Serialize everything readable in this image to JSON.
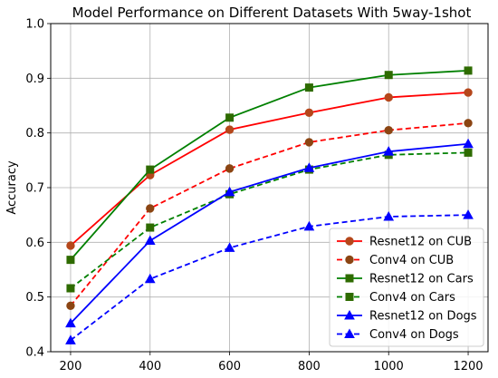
{
  "chart_data": {
    "type": "line",
    "title": "Model Performance on Different Datasets With 5way-1shot",
    "xlabel": "",
    "ylabel": "Accuracy",
    "x": [
      200,
      400,
      600,
      800,
      1000,
      1200
    ],
    "xlim": [
      150,
      1250
    ],
    "ylim": [
      0.4,
      1.0
    ],
    "xticks": [
      "200",
      "400",
      "600",
      "800",
      "1000",
      "1200"
    ],
    "yticks": [
      "0.4",
      "0.5",
      "0.6",
      "0.7",
      "0.8",
      "0.9",
      "1.0"
    ],
    "grid": true,
    "legend_position": "lower-right",
    "series": [
      {
        "name": "Resnet12 on CUB",
        "color": "#ff0000",
        "marker": "circle",
        "marker_color": "#b5471b",
        "linestyle": "solid",
        "values": [
          0.594,
          0.723,
          0.806,
          0.837,
          0.865,
          0.874
        ]
      },
      {
        "name": "Conv4 on CUB",
        "color": "#ff0000",
        "marker": "circle",
        "marker_color": "#8b4513",
        "linestyle": "dashed",
        "values": [
          0.484,
          0.662,
          0.735,
          0.783,
          0.805,
          0.818
        ]
      },
      {
        "name": "Resnet12 on Cars",
        "color": "#008000",
        "marker": "square",
        "marker_color": "#2e6b00",
        "linestyle": "solid",
        "values": [
          0.568,
          0.733,
          0.828,
          0.883,
          0.906,
          0.914
        ]
      },
      {
        "name": "Conv4 on Cars",
        "color": "#008000",
        "marker": "square",
        "marker_color": "#2e6b00",
        "linestyle": "dashed",
        "values": [
          0.516,
          0.627,
          0.688,
          0.733,
          0.76,
          0.764
        ]
      },
      {
        "name": "Resnet12 on Dogs",
        "color": "#0000ff",
        "marker": "triangle",
        "marker_color": "#0000ff",
        "linestyle": "solid",
        "values": [
          0.452,
          0.603,
          0.692,
          0.736,
          0.766,
          0.78
        ]
      },
      {
        "name": "Conv4 on Dogs",
        "color": "#0000ff",
        "marker": "triangle",
        "marker_color": "#0000ff",
        "linestyle": "dashed",
        "values": [
          0.421,
          0.533,
          0.59,
          0.629,
          0.647,
          0.65
        ]
      }
    ]
  }
}
